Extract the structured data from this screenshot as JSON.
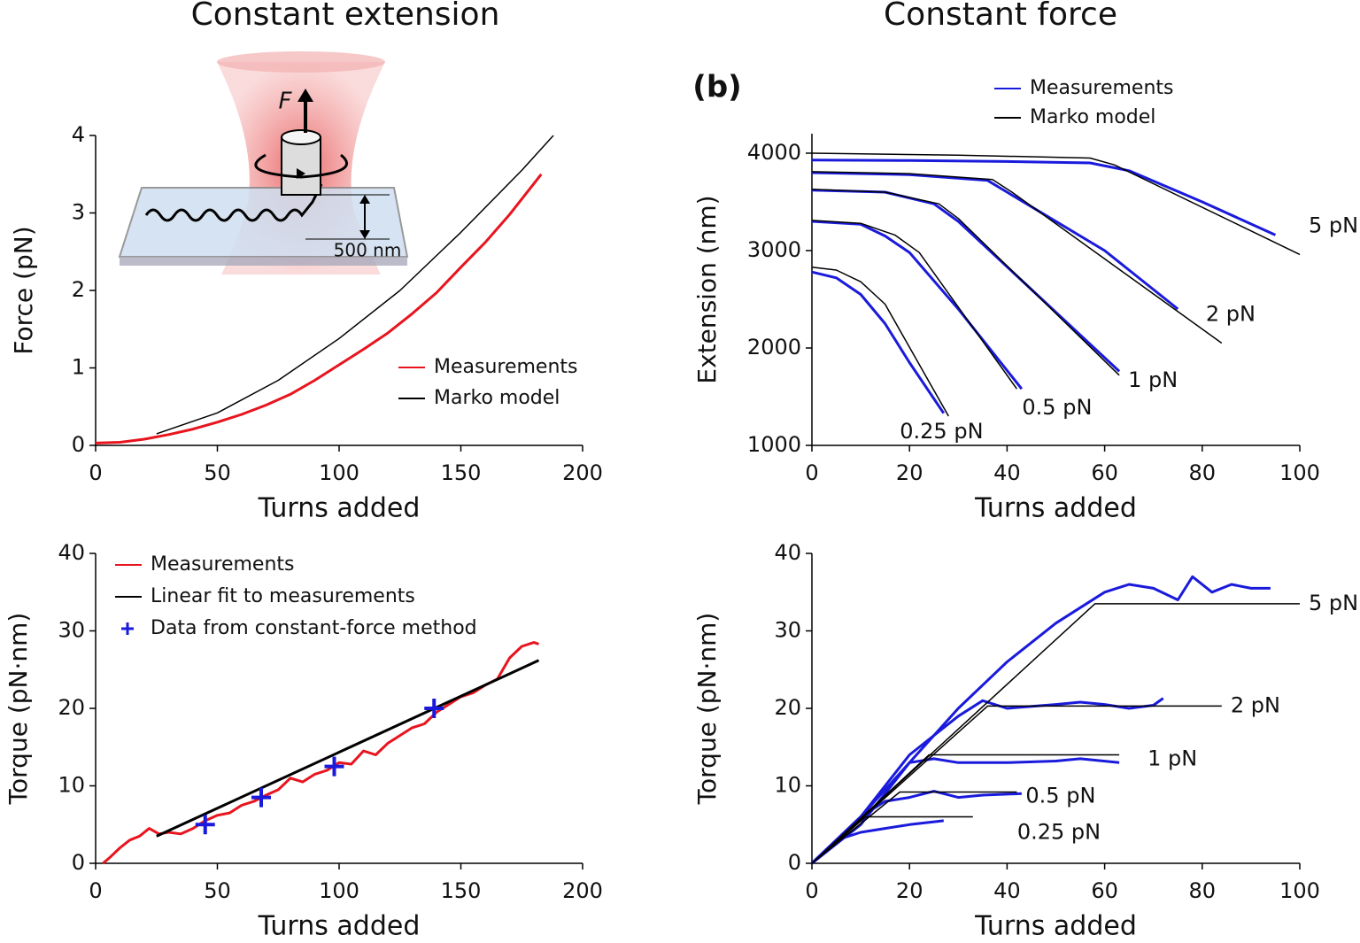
{
  "chart_data": [
    {
      "type": "line",
      "title": "Constant extension",
      "xlabel": "Turns added",
      "ylabel": "Force (pN)",
      "xlim": [
        0,
        200
      ],
      "ylim": [
        0,
        4
      ],
      "xticks": [
        0,
        50,
        100,
        150,
        200
      ],
      "yticks": [
        0,
        1,
        2,
        3,
        4
      ],
      "annotations": [
        "F",
        "500 nm"
      ],
      "series": [
        {
          "name": "Measurements",
          "color": "#e8141e",
          "x": [
            0,
            10,
            20,
            30,
            40,
            50,
            60,
            70,
            80,
            90,
            100,
            110,
            120,
            130,
            140,
            150,
            160,
            170,
            183
          ],
          "values": [
            0.03,
            0.04,
            0.08,
            0.14,
            0.21,
            0.3,
            0.4,
            0.52,
            0.66,
            0.84,
            1.04,
            1.24,
            1.45,
            1.7,
            1.97,
            2.3,
            2.62,
            2.98,
            3.5
          ]
        },
        {
          "name": "Marko model",
          "color": "#000000",
          "x": [
            25,
            50,
            75,
            100,
            125,
            150,
            175,
            188
          ],
          "values": [
            0.15,
            0.42,
            0.84,
            1.38,
            2.0,
            2.75,
            3.55,
            4.0
          ]
        }
      ]
    },
    {
      "type": "line",
      "title": "Constant force",
      "panel_label": "(b)",
      "xlabel": "Turns added",
      "ylabel": "Extension (nm)",
      "xlim": [
        0,
        100
      ],
      "ylim": [
        1000,
        4200
      ],
      "xticks": [
        0,
        20,
        40,
        60,
        80,
        100
      ],
      "yticks": [
        1000,
        2000,
        3000,
        4000
      ],
      "curve_labels": [
        "5 pN",
        "2 pN",
        "1 pN",
        "0.5 pN",
        "0.25 pN"
      ],
      "series": [
        {
          "name": "Measurements",
          "color": "#1a1adc",
          "curves": [
            {
              "x": [
                0,
                20,
                40,
                57,
                65,
                80,
                95
              ],
              "values": [
                3930,
                3925,
                3915,
                3900,
                3820,
                3500,
                3160
              ]
            },
            {
              "x": [
                0,
                20,
                36,
                40,
                60,
                75
              ],
              "values": [
                3800,
                3780,
                3720,
                3600,
                3000,
                2400
              ]
            },
            {
              "x": [
                0,
                15,
                25,
                30,
                45,
                63
              ],
              "values": [
                3620,
                3600,
                3480,
                3300,
                2600,
                1760
              ]
            },
            {
              "x": [
                0,
                10,
                15,
                20,
                30,
                43
              ],
              "values": [
                3300,
                3270,
                3150,
                2980,
                2400,
                1580
              ]
            },
            {
              "x": [
                0,
                5,
                10,
                15,
                20,
                27
              ],
              "values": [
                2780,
                2720,
                2550,
                2250,
                1850,
                1330
              ]
            }
          ]
        },
        {
          "name": "Marko model",
          "color": "#000000",
          "curves": [
            {
              "x": [
                0,
                30,
                57,
                62,
                100
              ],
              "values": [
                4000,
                3980,
                3950,
                3880,
                2960
              ]
            },
            {
              "x": [
                0,
                20,
                37,
                41,
                84
              ],
              "values": [
                3810,
                3790,
                3730,
                3600,
                2050
              ]
            },
            {
              "x": [
                0,
                15,
                26,
                30,
                63
              ],
              "values": [
                3630,
                3600,
                3480,
                3330,
                1720
              ]
            },
            {
              "x": [
                0,
                10,
                17,
                22,
                42
              ],
              "values": [
                3310,
                3280,
                3160,
                2980,
                1580
              ]
            },
            {
              "x": [
                0,
                5,
                10,
                15,
                28
              ],
              "values": [
                2830,
                2800,
                2680,
                2450,
                1300
              ]
            }
          ]
        }
      ]
    },
    {
      "type": "line",
      "xlabel": "Turns added",
      "ylabel": "Torque (pN·nm)",
      "xlim": [
        0,
        200
      ],
      "ylim": [
        0,
        40
      ],
      "xticks": [
        0,
        50,
        100,
        150,
        200
      ],
      "yticks": [
        0,
        10,
        20,
        30,
        40
      ],
      "series": [
        {
          "name": "Measurements",
          "color": "#e8141e",
          "x": [
            3,
            6,
            10,
            14,
            18,
            22,
            26,
            30,
            35,
            40,
            45,
            50,
            55,
            60,
            65,
            70,
            75,
            80,
            85,
            90,
            95,
            100,
            105,
            110,
            115,
            120,
            125,
            130,
            135,
            140,
            145,
            150,
            155,
            160,
            165,
            170,
            175,
            180,
            182
          ],
          "values": [
            0,
            0.8,
            2,
            3,
            3.5,
            4.5,
            3.8,
            4,
            3.8,
            4.5,
            5.5,
            6.2,
            6.5,
            7.5,
            8,
            8.8,
            9.5,
            11,
            10.5,
            11.5,
            12,
            13,
            12.8,
            14.5,
            14,
            15.5,
            16.5,
            17.5,
            18,
            19.5,
            20.5,
            21.5,
            22,
            23,
            23.8,
            26.5,
            28,
            28.5,
            28.3
          ]
        },
        {
          "name": "Linear fit to measurements",
          "color": "#000000",
          "x": [
            25,
            182
          ],
          "values": [
            3.5,
            26.2
          ]
        },
        {
          "name": "Data from constant-force method",
          "color": "#1a1adc",
          "marker": "plus",
          "x": [
            45,
            68,
            98,
            139
          ],
          "values": [
            5,
            8.5,
            12.5,
            20
          ]
        }
      ]
    },
    {
      "type": "line",
      "xlabel": "Turns added",
      "ylabel": "Torque (pN·nm)",
      "xlim": [
        0,
        100
      ],
      "ylim": [
        0,
        40
      ],
      "xticks": [
        0,
        20,
        40,
        60,
        80,
        100
      ],
      "yticks": [
        0,
        10,
        20,
        30,
        40
      ],
      "curve_labels": [
        "5 pN",
        "2 pN",
        "1 pN",
        "0.5 pN",
        "0.25 pN"
      ],
      "series": [
        {
          "color": "#1a1adc",
          "curves": [
            {
              "x": [
                0,
                10,
                20,
                30,
                40,
                50,
                55,
                60,
                65,
                70,
                75,
                78,
                82,
                86,
                90,
                94
              ],
              "values": [
                0,
                5,
                13,
                20,
                26,
                31,
                33,
                35,
                36,
                35.5,
                34,
                37,
                35,
                36,
                35.5,
                35.5
              ]
            },
            {
              "x": [
                0,
                10,
                20,
                30,
                35,
                40,
                50,
                55,
                60,
                65,
                70,
                72
              ],
              "values": [
                0,
                6,
                14,
                19,
                21,
                20,
                20.5,
                20.8,
                20.5,
                20,
                20.4,
                21.3
              ]
            },
            {
              "x": [
                0,
                10,
                20,
                25,
                30,
                40,
                50,
                55,
                63
              ],
              "values": [
                0,
                6,
                13,
                13.5,
                13,
                13,
                13.2,
                13.5,
                13
              ]
            },
            {
              "x": [
                0,
                10,
                15,
                20,
                25,
                30,
                35,
                43
              ],
              "values": [
                0,
                6,
                8,
                8.5,
                9.3,
                8.5,
                8.8,
                9
              ]
            },
            {
              "x": [
                0,
                5,
                10,
                15,
                20,
                27
              ],
              "values": [
                0,
                3,
                4,
                4.5,
                5,
                5.5
              ]
            }
          ]
        },
        {
          "color": "#000000",
          "curves": [
            {
              "x": [
                0,
                58,
                100
              ],
              "values": [
                0,
                33.5,
                33.5
              ]
            },
            {
              "x": [
                0,
                36,
                84
              ],
              "values": [
                0,
                20.3,
                20.3
              ]
            },
            {
              "x": [
                0,
                24,
                63
              ],
              "values": [
                0,
                14,
                14
              ]
            },
            {
              "x": [
                0,
                18,
                42
              ],
              "values": [
                0,
                9.2,
                9.2
              ]
            },
            {
              "x": [
                0,
                11,
                33
              ],
              "values": [
                0,
                6,
                6
              ]
            }
          ]
        }
      ]
    }
  ]
}
